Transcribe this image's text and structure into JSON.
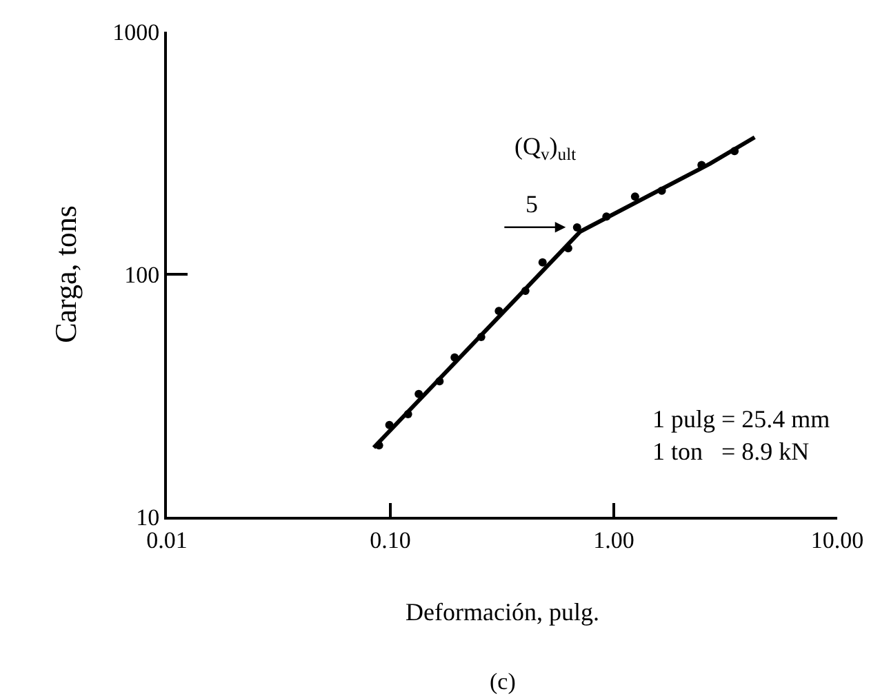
{
  "chart_data": {
    "type": "scatter",
    "xlabel": "Deformación, pulg.",
    "ylabel": "Carga, tons",
    "log": "xy",
    "marker": "circle",
    "xlim": [
      0.01,
      10
    ],
    "ylim": [
      10,
      1000
    ],
    "xticks": [
      0.01,
      {
        "value": 0.1,
        "label": "0.10"
      },
      {
        "value": 1,
        "label": "1.00"
      },
      {
        "value": 10,
        "label": "10.00"
      }
    ],
    "yticks": [
      10,
      100,
      1000
    ],
    "series": [
      {
        "color": "#000000",
        "x": [
          0.089,
          0.099,
          0.12,
          0.134,
          0.166,
          0.194,
          0.255,
          0.306,
          0.402,
          0.48,
          0.625,
          0.685,
          0.927,
          1.245,
          1.64,
          2.47,
          3.47
        ],
        "values": [
          19.7,
          23.9,
          26.5,
          32.1,
          36.2,
          45.4,
          55.1,
          70.6,
          85.4,
          112,
          128,
          156,
          173,
          209,
          221,
          282,
          322
        ]
      },
      {
        "type": "line",
        "color": "#000000",
        "marker": "none",
        "line_style": "solid",
        "x": [
          0.0843,
          0.708,
          2.7,
          4.27
        ],
        "values": [
          19.3,
          150,
          286,
          367
        ]
      }
    ],
    "annotations": [
      "5",
      "(Q$_{v}$)$_{ult}$",
      "1 pulg = 25.4 mm\n1 ton   = 8.9 kN",
      "(c)"
    ]
  }
}
